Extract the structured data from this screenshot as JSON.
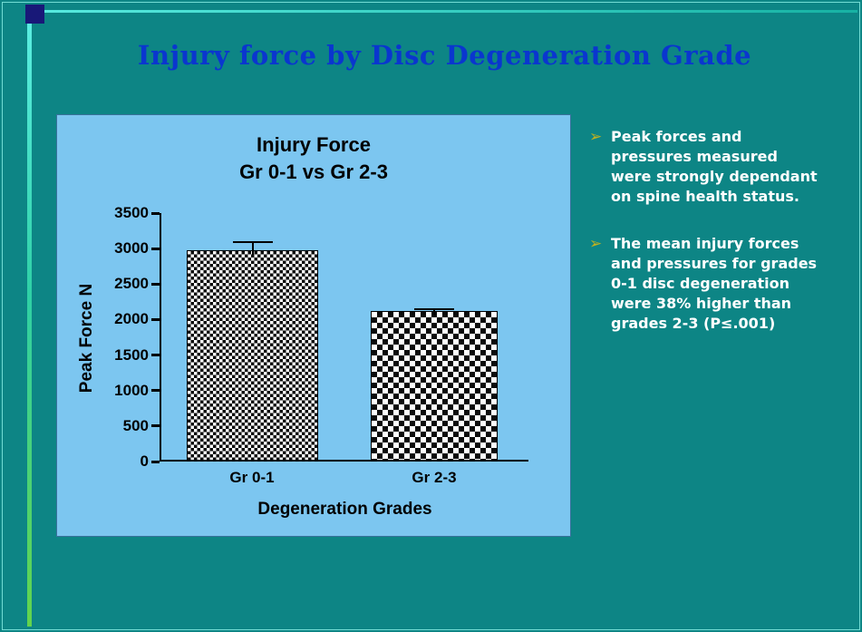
{
  "slide": {
    "title": "Injury force by Disc Degeneration Grade"
  },
  "bullets": {
    "marker": "➢",
    "items": [
      "Peak forces and pressures measured were strongly dependant on spine health status.",
      "The mean injury forces and pressures for grades 0-1 disc degeneration were 38% higher than grades 2-3 (P≤.001)"
    ]
  },
  "chart_data": {
    "type": "bar",
    "title_line1": "Injury Force",
    "title_line2": "Gr 0-1 vs Gr 2-3",
    "categories": [
      "Gr 0-1",
      "Gr 2-3"
    ],
    "values": [
      2975,
      2125
    ],
    "error_high": [
      3100,
      2160
    ],
    "xlabel": "Degeneration Grades",
    "ylabel": "Peak Force N",
    "ylim": [
      0,
      3500
    ],
    "yticks": [
      0,
      500,
      1000,
      1500,
      2000,
      2500,
      3000,
      3500
    ],
    "grid": false,
    "legend": "none",
    "bar_style": "black-white checkerboard pattern"
  },
  "theme": {
    "background": "#0d8585",
    "panel_bg": "#7cc6f0",
    "title_color": "#0a36cf",
    "bullet_text_color": "#ffffff",
    "bullet_marker_color": "#c2b11e",
    "frame_line_color": "#72dcd4",
    "corner_square_color": "#181878"
  }
}
